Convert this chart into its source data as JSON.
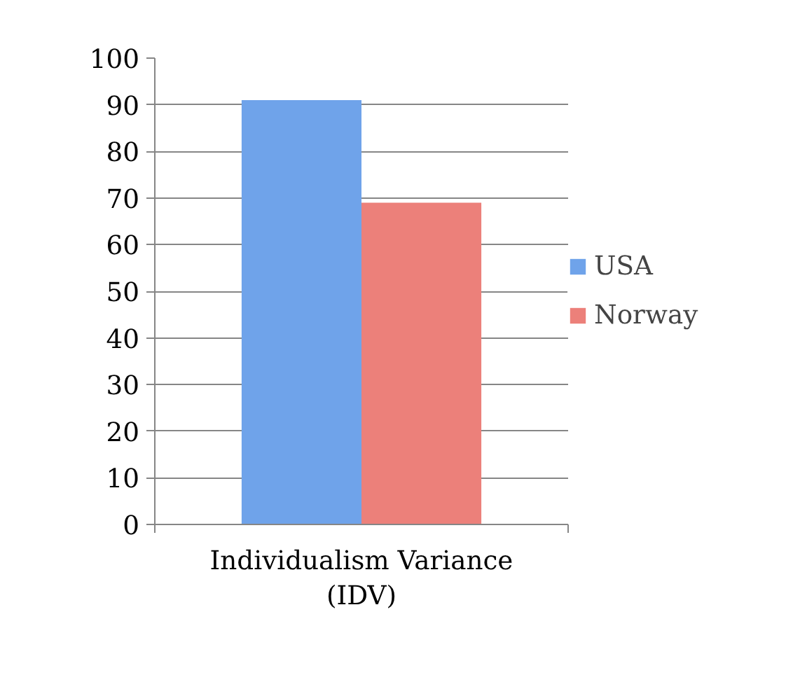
{
  "chart_data": {
    "type": "bar",
    "categories": [
      "Individualism Variance (IDV)"
    ],
    "series": [
      {
        "name": "USA",
        "color": "#6fa3ea",
        "values": [
          91
        ]
      },
      {
        "name": "Norway",
        "color": "#ec807a",
        "values": [
          69
        ]
      }
    ],
    "ylim": [
      0,
      100
    ],
    "yticks": [
      0,
      10,
      20,
      30,
      40,
      50,
      60,
      70,
      80,
      90,
      100
    ],
    "grid": "y",
    "legend": "right"
  }
}
